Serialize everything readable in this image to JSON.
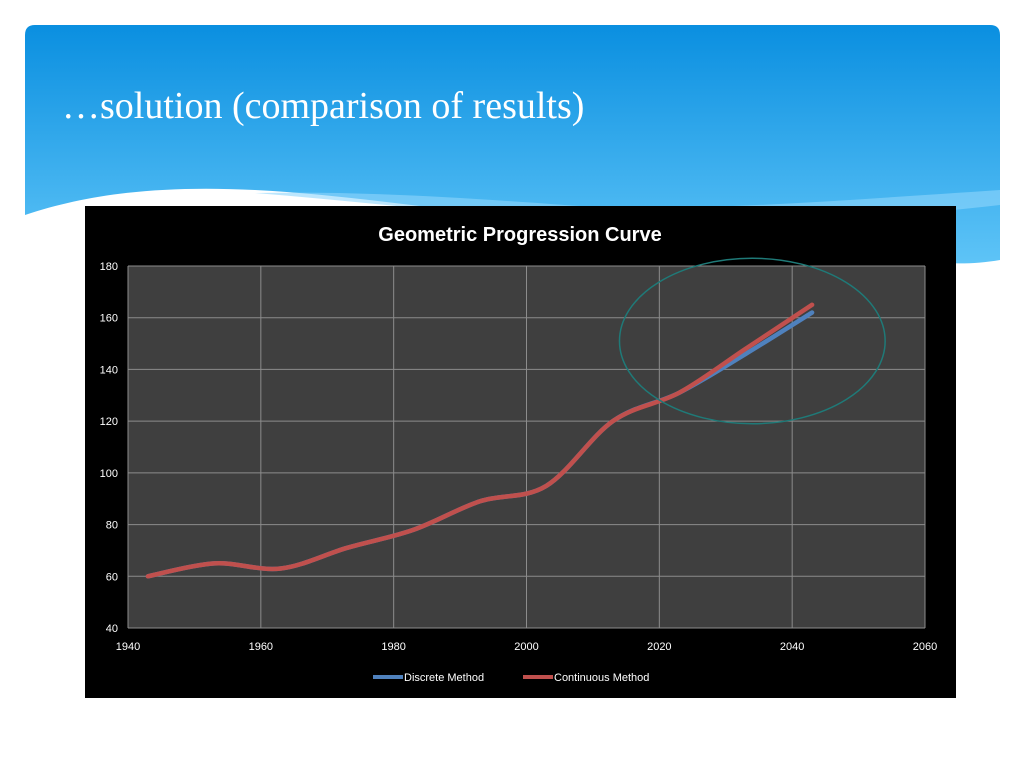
{
  "slide": {
    "title": "…solution (comparison of results)"
  },
  "colors": {
    "header_top": "#0a8fe0",
    "header_bottom": "#5ec4f7",
    "plot_area": "#3f3f3f",
    "grid": "#8c8c8c",
    "highlight_circle": "#1f7a78",
    "discrete": "#4f81bd",
    "continuous": "#c0504d"
  },
  "chart_data": {
    "type": "line",
    "title": "Geometric Progression Curve",
    "xlabel": "",
    "ylabel": "",
    "xlim": [
      1940,
      2060
    ],
    "ylim": [
      40,
      180
    ],
    "x_ticks": [
      1940,
      1960,
      1980,
      2000,
      2020,
      2040,
      2060
    ],
    "y_ticks": [
      40,
      60,
      80,
      100,
      120,
      140,
      160,
      180
    ],
    "grid": true,
    "legend_position": "bottom",
    "series": [
      {
        "name": "Discrete Method",
        "color": "#4f81bd",
        "x": [
          1943,
          1953,
          1963,
          1973,
          1983,
          1993,
          2003,
          2013,
          2023,
          2033,
          2043
        ],
        "y": [
          60,
          65,
          63,
          71,
          78,
          89,
          95,
          120,
          131,
          146,
          162
        ]
      },
      {
        "name": "Continuous Method",
        "color": "#c0504d",
        "x": [
          1943,
          1953,
          1963,
          1973,
          1983,
          1993,
          2003,
          2013,
          2023,
          2033,
          2043
        ],
        "y": [
          60,
          65,
          63,
          71,
          78,
          89,
          95,
          120,
          131,
          148,
          165
        ]
      }
    ],
    "annotation": {
      "type": "ellipse-highlight",
      "center_x": 2034,
      "center_y": 151,
      "rx_years": 20,
      "ry_units": 32
    }
  }
}
